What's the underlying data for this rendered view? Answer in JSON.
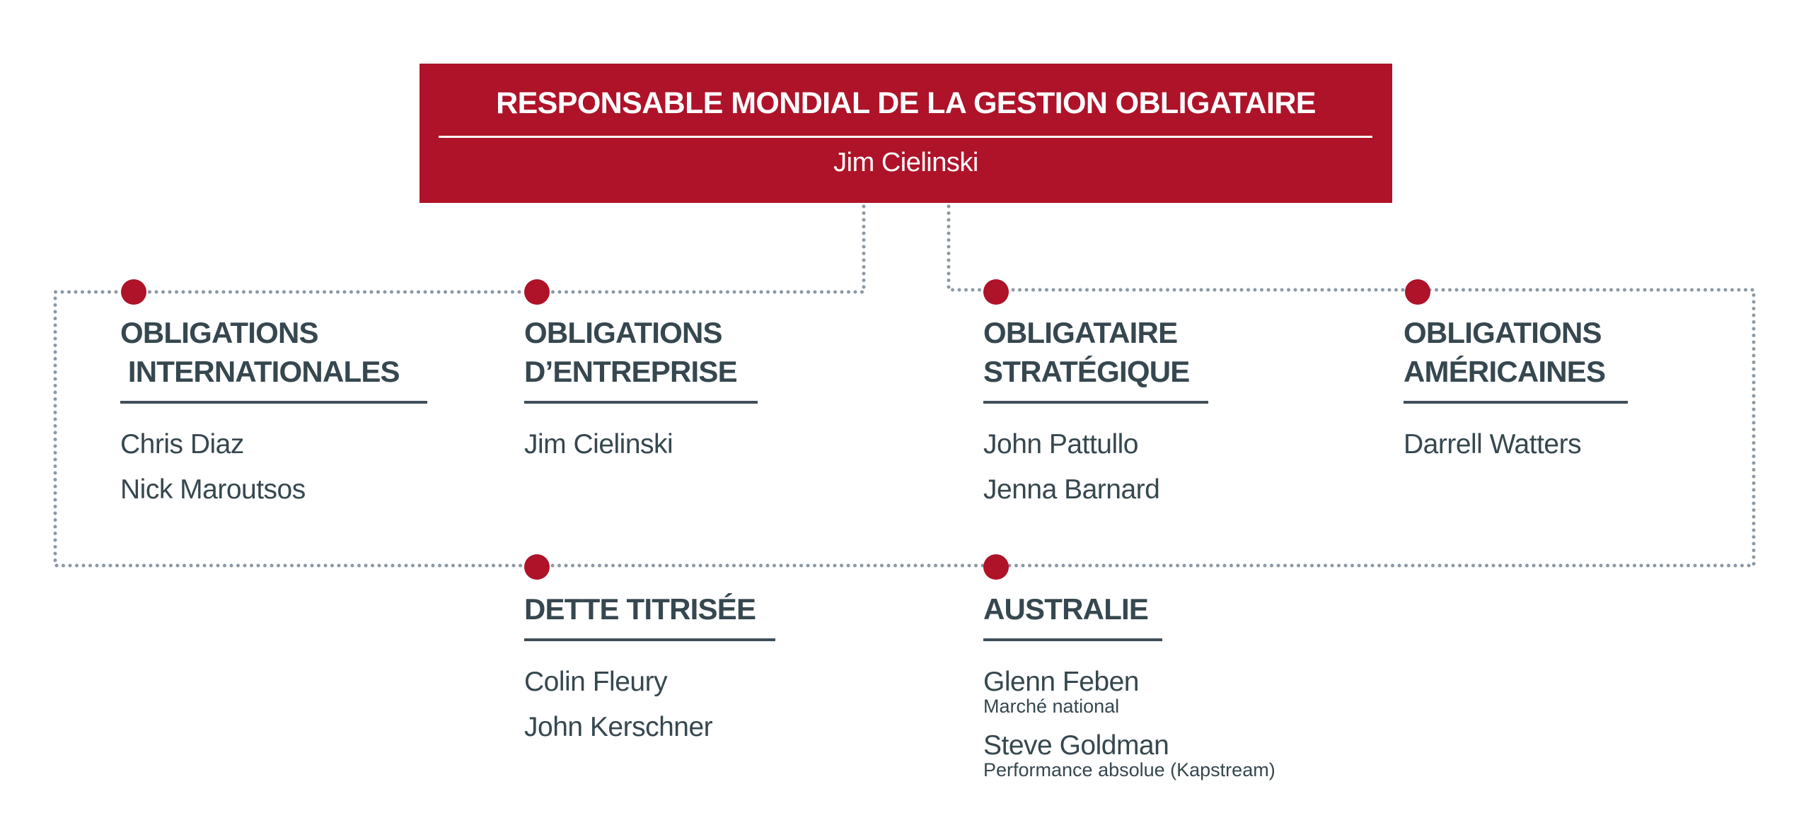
{
  "colors": {
    "accent": "#ae1329",
    "text": "#36474f",
    "connector": "#8a99a6"
  },
  "head": {
    "title": "RESPONSABLE MONDIAL DE LA GESTION OBLIGATAIRE",
    "name": "Jim Cielinski"
  },
  "units": [
    {
      "title": "OBLIGATIONS\n INTERNATIONALES",
      "people": [
        {
          "name": "Chris Diaz"
        },
        {
          "name": "Nick Maroutsos"
        }
      ]
    },
    {
      "title": "OBLIGATIONS\nD’ENTREPRISE",
      "people": [
        {
          "name": "Jim Cielinski"
        }
      ]
    },
    {
      "title": "OBLIGATAIRE\nSTRATÉGIQUE",
      "people": [
        {
          "name": "John Pattullo"
        },
        {
          "name": "Jenna Barnard"
        }
      ]
    },
    {
      "title": "OBLIGATIONS\nAMÉRICAINES",
      "people": [
        {
          "name": "Darrell Watters"
        }
      ]
    },
    {
      "title": "DETTE TITRISÉE",
      "people": [
        {
          "name": "Colin Fleury"
        },
        {
          "name": "John Kerschner"
        }
      ]
    },
    {
      "title": "AUSTRALIE",
      "people": [
        {
          "name": "Glenn Feben",
          "role": "Marché national"
        },
        {
          "name": "Steve Goldman",
          "role": "Performance absolue (Kapstream)"
        }
      ]
    }
  ]
}
